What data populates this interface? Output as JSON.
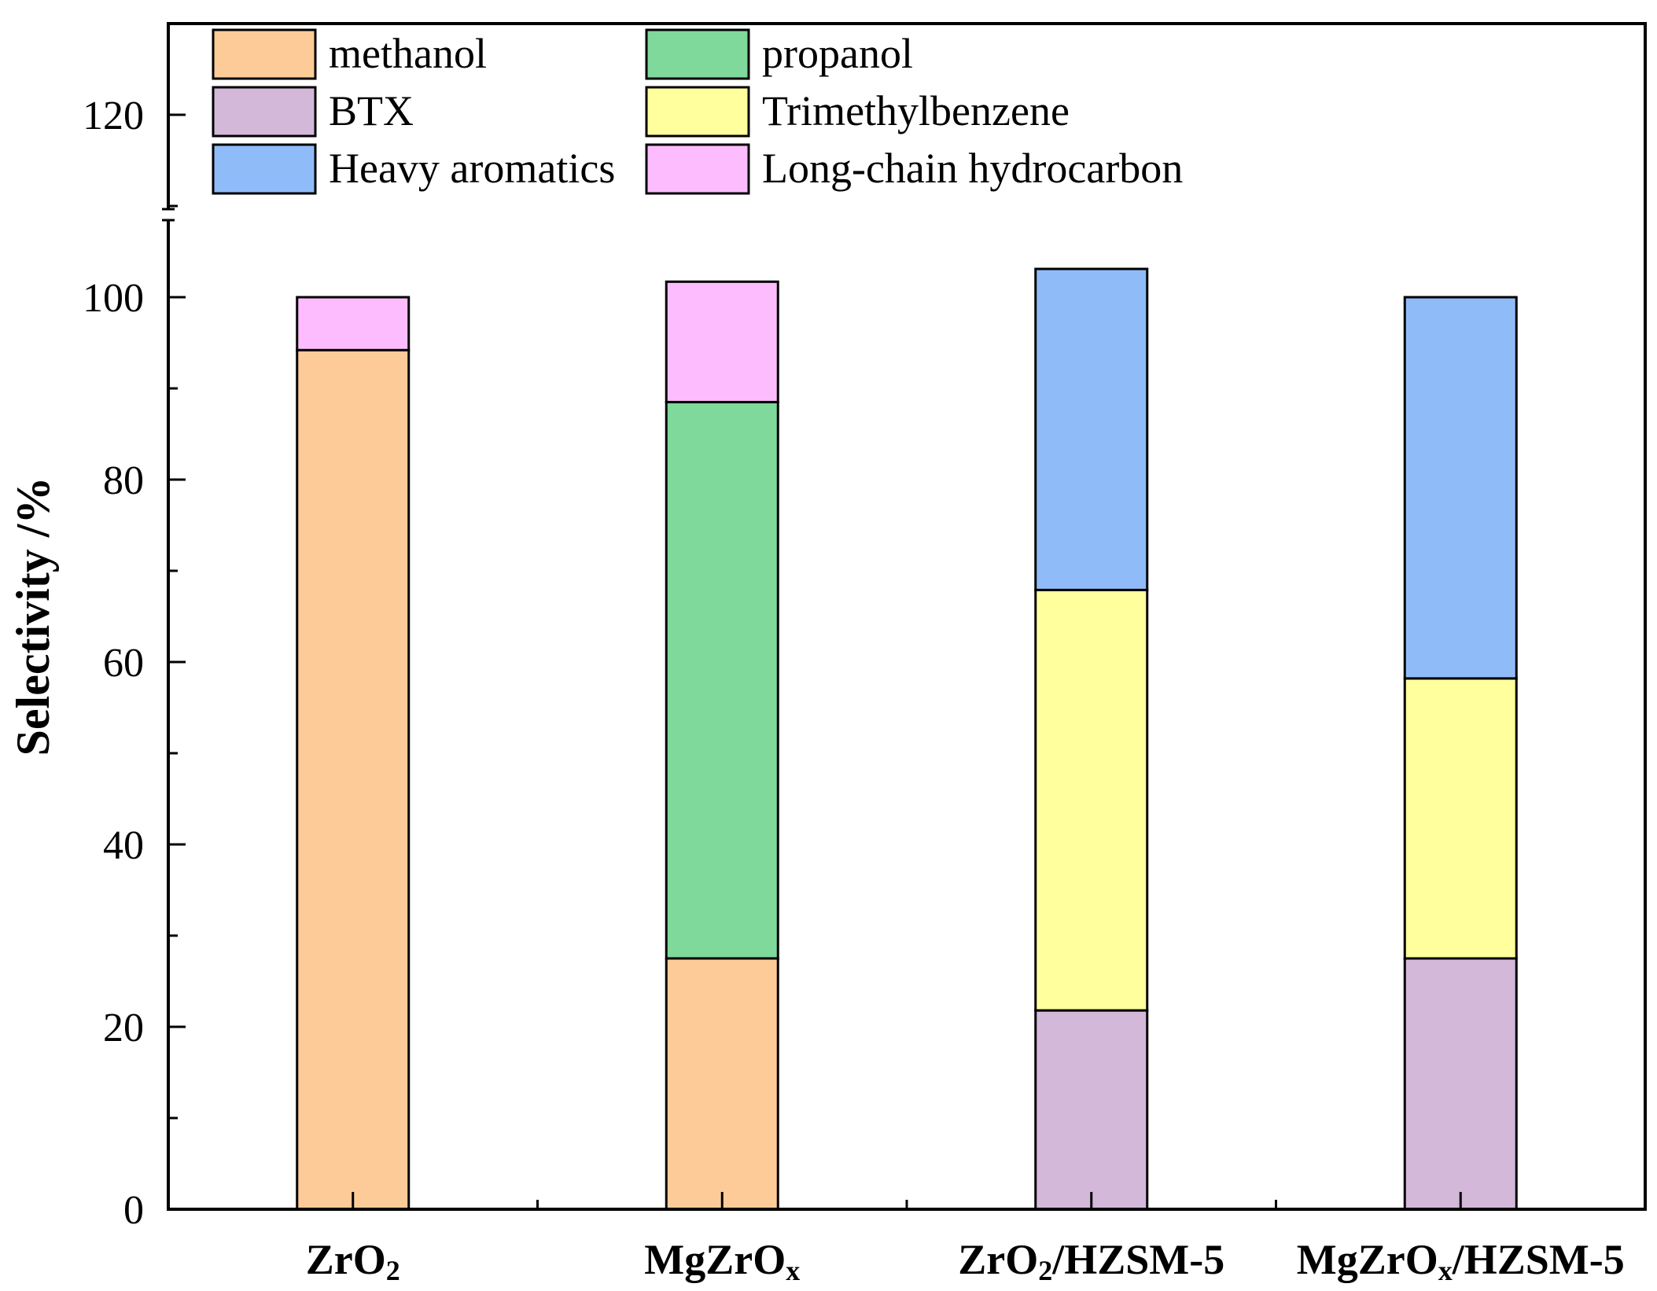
{
  "chart_data": {
    "type": "bar",
    "stacked": true,
    "title": "",
    "xlabel": "",
    "ylabel": "Selectivity /%",
    "ylim": [
      0,
      130
    ],
    "yticks": [
      0,
      20,
      40,
      60,
      80,
      100,
      120
    ],
    "categories": [
      {
        "main": "ZrO",
        "sub": "2",
        "rest": ""
      },
      {
        "main": "MgZrO",
        "sub": "x",
        "rest": ""
      },
      {
        "main": "ZrO",
        "sub": "2",
        "rest": "/HZSM-5"
      },
      {
        "main": "MgZrO",
        "sub": "x",
        "rest": "/HZSM-5"
      }
    ],
    "series": [
      {
        "name": "methanol",
        "color": "#fdcb97",
        "values": [
          94.2,
          27.5,
          0,
          0
        ]
      },
      {
        "name": "propanol",
        "color": "#7fd99a",
        "values": [
          0,
          61.0,
          0,
          0
        ]
      },
      {
        "name": "BTX",
        "color": "#d3b8da",
        "values": [
          0,
          0,
          21.8,
          27.5
        ]
      },
      {
        "name": "Trimethylbenzene",
        "color": "#ffff9e",
        "values": [
          0,
          0,
          46.1,
          30.7
        ]
      },
      {
        "name": "Heavy aromatics",
        "color": "#8fbcf9",
        "values": [
          0,
          0,
          35.2,
          41.8
        ]
      },
      {
        "name": "Long-chain hydrocarbon",
        "color": "#fdbcfd",
        "values": [
          5.8,
          13.2,
          0,
          0
        ]
      }
    ],
    "legend_position": "top"
  }
}
